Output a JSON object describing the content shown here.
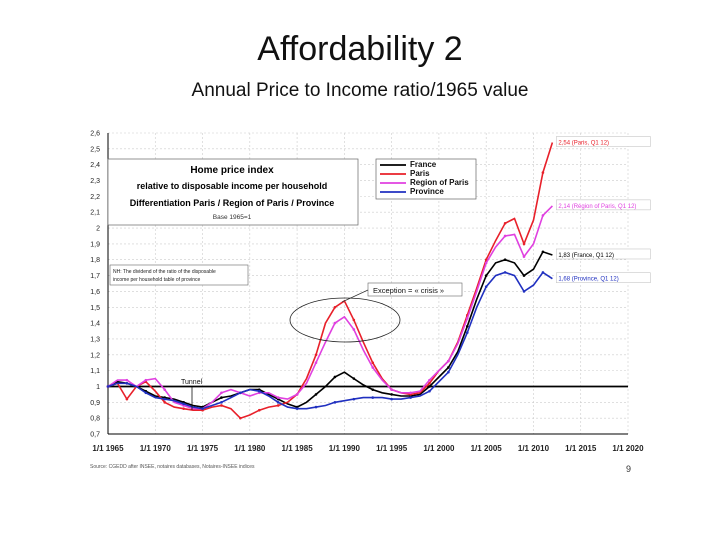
{
  "slide": {
    "title": "Affordability 2",
    "subtitle": "Annual Price to Income ratio/1965 value",
    "page_number": "9"
  },
  "chart_data": {
    "type": "line",
    "title_lines": [
      "Home price index",
      "relative to disposable income per household",
      "Differentiation Paris / Region of Paris / Province"
    ],
    "base_note": "Base 1965=1",
    "note_box": [
      "NH: The dividend of the ratio of the disposable",
      "income per household table of province"
    ],
    "annotations": {
      "exception": "Exception = « crisis »",
      "tunnel": "Tunnel",
      "source": "Source: CGEDD after INSEE, notaires databases, Notaires-INSEE indices"
    },
    "x_ticks": [
      "1/1 1965",
      "1/1 1970",
      "1/1 1975",
      "1/1 1980",
      "1/1 1985",
      "1/1 1990",
      "1/1 1995",
      "1/1 2000",
      "1/1 2005",
      "1/1 2010",
      "1/1 2015",
      "1/1 2020"
    ],
    "xlim": [
      1965,
      2020
    ],
    "y_ticks": [
      "0,7",
      "0,8",
      "0,9",
      "1",
      "1,1",
      "1,2",
      "1,3",
      "1,4",
      "1,5",
      "1,6",
      "1,7",
      "1,8",
      "1,9",
      "2",
      "2,1",
      "2,2",
      "2,3",
      "2,4",
      "2,5",
      "2,6"
    ],
    "ylim": [
      0.7,
      2.6
    ],
    "reference_line": 1,
    "legend_position": "top-center",
    "colors": {
      "France": "#000000",
      "Paris": "#e8202a",
      "Region of Paris": "#e040e0",
      "Province": "#2030c0",
      "gridline": "#cccccc",
      "axis": "#000000"
    },
    "series": [
      {
        "name": "France",
        "end_label": "1,83 (France, Q1 12)",
        "x": [
          1965,
          1966,
          1967,
          1968,
          1969,
          1970,
          1971,
          1972,
          1973,
          1974,
          1975,
          1976,
          1977,
          1978,
          1979,
          1980,
          1981,
          1982,
          1983,
          1984,
          1985,
          1986,
          1987,
          1988,
          1989,
          1990,
          1991,
          1992,
          1993,
          1994,
          1995,
          1996,
          1997,
          1998,
          1999,
          2000,
          2001,
          2002,
          2003,
          2004,
          2005,
          2006,
          2007,
          2008,
          2009,
          2010,
          2011,
          2012
        ],
        "y": [
          1.0,
          1.03,
          1.02,
          1.0,
          0.97,
          0.94,
          0.93,
          0.92,
          0.9,
          0.88,
          0.87,
          0.9,
          0.93,
          0.94,
          0.96,
          0.98,
          0.98,
          0.95,
          0.92,
          0.89,
          0.87,
          0.9,
          0.95,
          1.0,
          1.06,
          1.09,
          1.05,
          1.01,
          0.98,
          0.96,
          0.95,
          0.94,
          0.94,
          0.95,
          1.0,
          1.06,
          1.12,
          1.22,
          1.38,
          1.55,
          1.7,
          1.78,
          1.8,
          1.78,
          1.7,
          1.74,
          1.85,
          1.83
        ]
      },
      {
        "name": "Paris",
        "end_label": "2,54 (Paris, Q1 12)",
        "x": [
          1965,
          1966,
          1967,
          1968,
          1969,
          1970,
          1971,
          1972,
          1973,
          1974,
          1975,
          1976,
          1977,
          1978,
          1979,
          1980,
          1981,
          1982,
          1983,
          1984,
          1985,
          1986,
          1987,
          1988,
          1989,
          1990,
          1991,
          1992,
          1993,
          1994,
          1995,
          1996,
          1997,
          1998,
          1999,
          2000,
          2001,
          2002,
          2003,
          2004,
          2005,
          2006,
          2007,
          2008,
          2009,
          2010,
          2011,
          2012
        ],
        "y": [
          1.0,
          1.02,
          0.92,
          1.0,
          1.03,
          0.97,
          0.9,
          0.87,
          0.86,
          0.85,
          0.85,
          0.87,
          0.88,
          0.86,
          0.8,
          0.82,
          0.85,
          0.87,
          0.88,
          0.9,
          0.95,
          1.05,
          1.2,
          1.4,
          1.5,
          1.54,
          1.42,
          1.28,
          1.15,
          1.05,
          0.98,
          0.96,
          0.95,
          0.96,
          1.02,
          1.1,
          1.16,
          1.28,
          1.45,
          1.62,
          1.8,
          1.92,
          2.03,
          2.06,
          1.9,
          2.05,
          2.35,
          2.54
        ]
      },
      {
        "name": "Region of Paris",
        "end_label": "2,14 (Région of Paris, Q1 12)",
        "x": [
          1965,
          1966,
          1967,
          1968,
          1969,
          1970,
          1971,
          1972,
          1973,
          1974,
          1975,
          1976,
          1977,
          1978,
          1979,
          1980,
          1981,
          1982,
          1983,
          1984,
          1985,
          1986,
          1987,
          1988,
          1989,
          1990,
          1991,
          1992,
          1993,
          1994,
          1995,
          1996,
          1997,
          1998,
          1999,
          2000,
          2001,
          2002,
          2003,
          2004,
          2005,
          2006,
          2007,
          2008,
          2009,
          2010,
          2011,
          2012
        ],
        "y": [
          1.0,
          1.04,
          1.04,
          1.0,
          1.04,
          1.05,
          0.98,
          0.9,
          0.88,
          0.86,
          0.86,
          0.9,
          0.96,
          0.98,
          0.96,
          0.94,
          0.96,
          0.96,
          0.93,
          0.92,
          0.95,
          1.02,
          1.15,
          1.28,
          1.4,
          1.44,
          1.36,
          1.23,
          1.12,
          1.04,
          0.98,
          0.96,
          0.96,
          0.97,
          1.04,
          1.1,
          1.16,
          1.27,
          1.43,
          1.6,
          1.78,
          1.88,
          1.95,
          1.96,
          1.82,
          1.9,
          2.08,
          2.14
        ]
      },
      {
        "name": "Province",
        "end_label": "1,68 (Province, Q1 12)",
        "x": [
          1965,
          1966,
          1967,
          1968,
          1969,
          1970,
          1971,
          1972,
          1973,
          1974,
          1975,
          1976,
          1977,
          1978,
          1979,
          1980,
          1981,
          1982,
          1983,
          1984,
          1985,
          1986,
          1987,
          1988,
          1989,
          1990,
          1991,
          1992,
          1993,
          1994,
          1995,
          1996,
          1997,
          1998,
          1999,
          2000,
          2001,
          2002,
          2003,
          2004,
          2005,
          2006,
          2007,
          2008,
          2009,
          2010,
          2011,
          2012
        ],
        "y": [
          1.0,
          1.02,
          1.02,
          1.0,
          0.96,
          0.93,
          0.92,
          0.91,
          0.89,
          0.87,
          0.86,
          0.88,
          0.9,
          0.93,
          0.96,
          0.98,
          0.97,
          0.94,
          0.9,
          0.87,
          0.86,
          0.86,
          0.87,
          0.88,
          0.9,
          0.91,
          0.92,
          0.93,
          0.93,
          0.93,
          0.92,
          0.92,
          0.93,
          0.94,
          0.97,
          1.03,
          1.09,
          1.2,
          1.34,
          1.5,
          1.63,
          1.7,
          1.72,
          1.7,
          1.6,
          1.64,
          1.72,
          1.68
        ]
      }
    ]
  }
}
